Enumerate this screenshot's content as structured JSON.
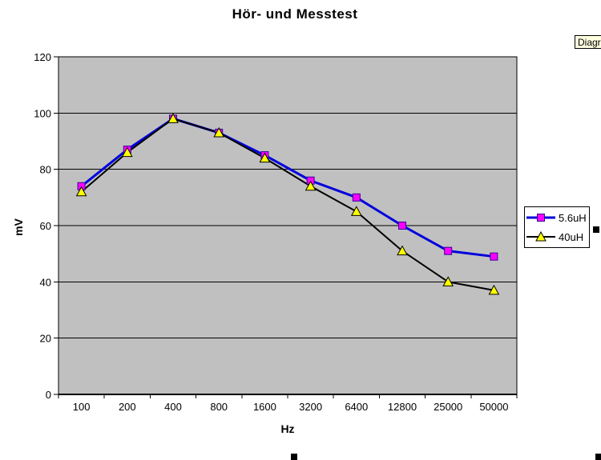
{
  "tooltip": {
    "label": "Diagr"
  },
  "chart_data": {
    "type": "line",
    "title": "Hör- und Messtest",
    "xlabel": "Hz",
    "ylabel": "mV",
    "categories": [
      "100",
      "200",
      "400",
      "800",
      "1600",
      "3200",
      "6400",
      "12800",
      "25000",
      "50000"
    ],
    "yticks": [
      0,
      20,
      40,
      60,
      80,
      100,
      120
    ],
    "ylim": [
      0,
      120
    ],
    "grid": true,
    "legend_position": "right",
    "plot_bg": "#C0C0C0",
    "chart_bg": "#FFFFFF",
    "gridline_color": "#000000",
    "series": [
      {
        "name": "5.6uH",
        "line_color": "#0000DD",
        "line_width": 3,
        "marker": "square",
        "marker_fill": "#FF00FF",
        "marker_stroke": "#330099",
        "values": [
          74,
          87,
          98,
          93,
          85,
          76,
          70,
          60,
          51,
          49
        ]
      },
      {
        "name": "40uH",
        "line_color": "#000000",
        "line_width": 2,
        "marker": "triangle",
        "marker_fill": "#FFFF00",
        "marker_stroke": "#000000",
        "values": [
          72,
          86,
          98,
          93,
          84,
          74,
          65,
          51,
          40,
          37
        ]
      }
    ]
  }
}
